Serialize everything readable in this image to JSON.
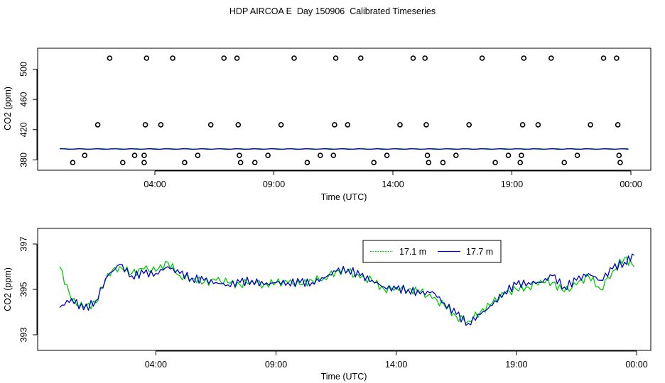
{
  "title": "HDP AIRCOA E  Day 150906  Calibrated Timeseries",
  "colors": {
    "series_a": "#00cc00",
    "series_b": "#0000cc",
    "axis": "#000000",
    "points": "#000000"
  },
  "chart_data": [
    {
      "type": "line",
      "xlabel": "Time (UTC)",
      "ylabel": "CO2 (ppm)",
      "x_unit": "hours",
      "xlim": [
        0,
        24
      ],
      "ylim": [
        372,
        522
      ],
      "x_ticks": [
        {
          "value": 4,
          "label": "04:00"
        },
        {
          "value": 9,
          "label": "09:00"
        },
        {
          "value": 14,
          "label": "14:00"
        },
        {
          "value": 19,
          "label": "19:00"
        },
        {
          "value": 24,
          "label": "00:00"
        }
      ],
      "y_ticks": [
        380,
        420,
        460,
        500
      ],
      "grid": false,
      "legend": "none",
      "lines": [
        {
          "color": "green",
          "y": 394.6
        },
        {
          "color": "blue",
          "y": 394.4
        }
      ],
      "points": [
        [
          0.55,
          376.5
        ],
        [
          1.05,
          386
        ],
        [
          1.6,
          426.5
        ],
        [
          2.1,
          514.5
        ],
        [
          2.65,
          376.5
        ],
        [
          3.15,
          386
        ],
        [
          3.55,
          376.5
        ],
        [
          3.55,
          386
        ],
        [
          3.6,
          426.5
        ],
        [
          3.65,
          514.5
        ],
        [
          4.25,
          426.5
        ],
        [
          4.75,
          514.5
        ],
        [
          5.25,
          376.5
        ],
        [
          5.8,
          386
        ],
        [
          6.35,
          426.5
        ],
        [
          6.9,
          514.5
        ],
        [
          7.45,
          514.5
        ],
        [
          7.5,
          426.5
        ],
        [
          7.55,
          386
        ],
        [
          7.6,
          376.5
        ],
        [
          8.2,
          376.5
        ],
        [
          8.75,
          386
        ],
        [
          9.3,
          426.5
        ],
        [
          9.85,
          514.5
        ],
        [
          10.4,
          376.5
        ],
        [
          10.95,
          386
        ],
        [
          11.5,
          386
        ],
        [
          11.55,
          426.5
        ],
        [
          11.6,
          514.5
        ],
        [
          12.1,
          426.5
        ],
        [
          12.65,
          514.5
        ],
        [
          13.2,
          376.5
        ],
        [
          13.75,
          386
        ],
        [
          14.3,
          426.5
        ],
        [
          14.85,
          514.5
        ],
        [
          15.35,
          514.5
        ],
        [
          15.4,
          426.5
        ],
        [
          15.45,
          386
        ],
        [
          15.5,
          376.5
        ],
        [
          16.1,
          376.5
        ],
        [
          16.65,
          386
        ],
        [
          17.2,
          426.5
        ],
        [
          17.75,
          514.5
        ],
        [
          18.3,
          376.5
        ],
        [
          18.85,
          386
        ],
        [
          19.35,
          376.5
        ],
        [
          19.4,
          386
        ],
        [
          19.45,
          426.5
        ],
        [
          19.5,
          514.5
        ],
        [
          20.1,
          426.5
        ],
        [
          20.65,
          514.5
        ],
        [
          21.2,
          376.5
        ],
        [
          21.75,
          386
        ],
        [
          22.3,
          426.5
        ],
        [
          22.85,
          514.5
        ],
        [
          23.4,
          514.5
        ],
        [
          23.45,
          426.5
        ],
        [
          23.5,
          386
        ],
        [
          23.55,
          376.5
        ]
      ]
    },
    {
      "type": "line",
      "xlabel": "Time (UTC)",
      "ylabel": "CO2 (ppm)",
      "x_unit": "hours",
      "xlim": [
        0,
        24
      ],
      "ylim": [
        392.5,
        397.5
      ],
      "x_ticks": [
        {
          "value": 4,
          "label": "04:00"
        },
        {
          "value": 9,
          "label": "09:00"
        },
        {
          "value": 14,
          "label": "14:00"
        },
        {
          "value": 19,
          "label": "19:00"
        },
        {
          "value": 24,
          "label": "00:00"
        }
      ],
      "y_ticks": [
        393,
        395,
        397
      ],
      "grid": false,
      "legend": "top-right",
      "series": [
        {
          "name": "17.1 m",
          "color": "green",
          "x": [
            0,
            0.5,
            1,
            1.5,
            2,
            2.5,
            3,
            3.5,
            4,
            4.5,
            5,
            5.5,
            6,
            6.5,
            7,
            7.5,
            8,
            8.5,
            9,
            9.5,
            10,
            10.5,
            11,
            11.5,
            12,
            12.5,
            13,
            13.5,
            14,
            14.5,
            15,
            15.5,
            16,
            16.5,
            17,
            17.5,
            18,
            18.5,
            19,
            19.5,
            20,
            20.5,
            21,
            21.5,
            22,
            22.5,
            23,
            23.5,
            23.9
          ],
          "y": [
            396.0,
            394.5,
            394.2,
            394.4,
            395.7,
            396.0,
            395.7,
            395.9,
            395.8,
            396.2,
            395.6,
            395.5,
            395.3,
            395.4,
            395.3,
            395.2,
            395.4,
            395.2,
            395.3,
            395.3,
            395.2,
            395.4,
            395.5,
            395.8,
            395.8,
            395.5,
            395.4,
            395.0,
            395.1,
            395.0,
            394.9,
            394.6,
            394.3,
            393.8,
            393.6,
            394.0,
            394.4,
            394.8,
            395.0,
            395.1,
            395.4,
            395.3,
            394.9,
            395.2,
            395.6,
            395.0,
            395.8,
            396.4,
            396.0
          ]
        },
        {
          "name": "17.7 m",
          "color": "blue",
          "x": [
            0,
            0.5,
            1,
            1.5,
            2,
            2.5,
            3,
            3.5,
            4,
            4.5,
            5,
            5.5,
            6,
            6.5,
            7,
            7.5,
            8,
            8.5,
            9,
            9.5,
            10,
            10.5,
            11,
            11.5,
            12,
            12.5,
            13,
            13.5,
            14,
            14.5,
            15,
            15.5,
            16,
            16.5,
            17,
            17.5,
            18,
            18.5,
            19,
            19.5,
            20,
            20.5,
            21,
            21.5,
            22,
            22.5,
            23,
            23.5,
            23.9
          ],
          "y": [
            394.2,
            394.6,
            394.1,
            394.5,
            395.6,
            396.1,
            395.6,
            395.7,
            395.7,
            396.0,
            395.7,
            395.5,
            395.4,
            395.3,
            395.2,
            395.3,
            395.4,
            395.2,
            395.3,
            395.3,
            395.3,
            395.3,
            395.5,
            395.8,
            395.9,
            395.6,
            395.4,
            395.1,
            395.0,
            395.0,
            394.8,
            394.9,
            394.4,
            393.9,
            393.5,
            393.9,
            394.3,
            394.9,
            395.2,
            395.3,
            395.3,
            395.6,
            395.1,
            395.4,
            395.7,
            395.4,
            395.9,
            396.2,
            396.5
          ]
        }
      ]
    }
  ]
}
